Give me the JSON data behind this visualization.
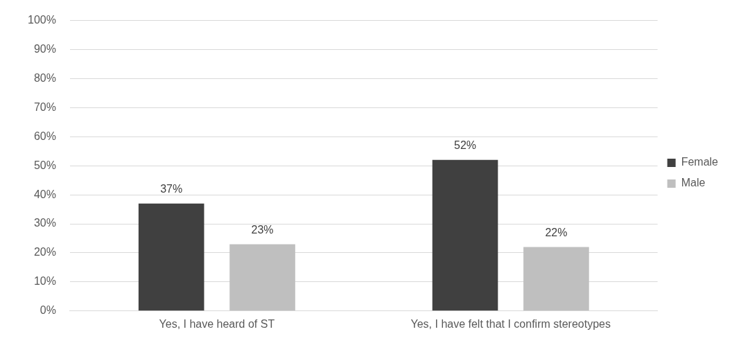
{
  "chart_data": {
    "type": "bar",
    "categories": [
      "Yes, I have heard of ST",
      "Yes, I have felt that I confirm stereotypes"
    ],
    "series": [
      {
        "name": "Female",
        "color": "#404040",
        "values": [
          37,
          52
        ],
        "value_labels": [
          "37%",
          "52%"
        ]
      },
      {
        "name": "Male",
        "color": "#bfbfbf",
        "values": [
          23,
          22
        ],
        "value_labels": [
          "23%",
          "22%"
        ]
      }
    ],
    "ylim": [
      0,
      100
    ],
    "yticks": [
      {
        "value": 0,
        "label": "0%"
      },
      {
        "value": 10,
        "label": "10%"
      },
      {
        "value": 20,
        "label": "20%"
      },
      {
        "value": 30,
        "label": "30%"
      },
      {
        "value": 40,
        "label": "40%"
      },
      {
        "value": 50,
        "label": "50%"
      },
      {
        "value": 60,
        "label": "60%"
      },
      {
        "value": 70,
        "label": "70%"
      },
      {
        "value": 80,
        "label": "80%"
      },
      {
        "value": 90,
        "label": "90%"
      },
      {
        "value": 100,
        "label": "100%"
      }
    ],
    "grid": "y",
    "legend": "right"
  }
}
